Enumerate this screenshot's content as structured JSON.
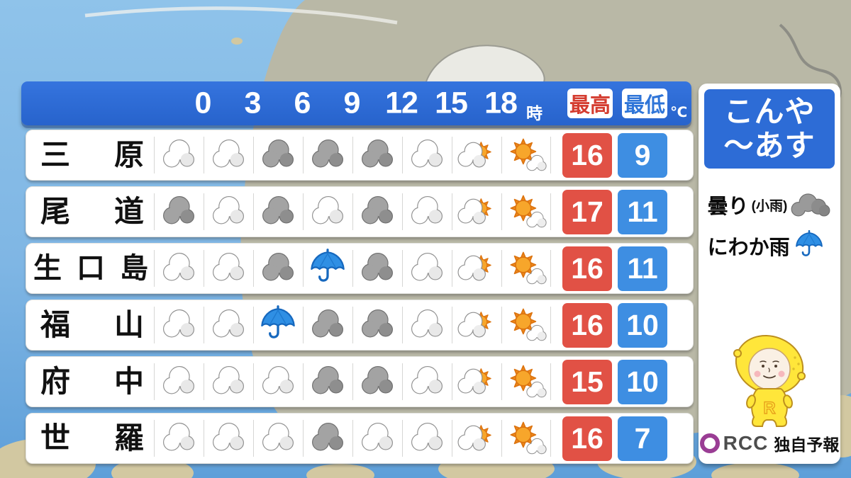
{
  "header": {
    "times": [
      "0",
      "3",
      "6",
      "9",
      "12",
      "15",
      "18"
    ],
    "hour_suffix": "時",
    "high_label": "最高",
    "low_label": "最低",
    "unit": "℃"
  },
  "table": {
    "rows": [
      {
        "city": "三原",
        "icons": [
          "cloud",
          "cloud",
          "dark-cloud",
          "dark-cloud",
          "dark-cloud",
          "cloud",
          "cloud-sun",
          "sun-cloud"
        ],
        "high": "16",
        "low": "9"
      },
      {
        "city": "尾道",
        "icons": [
          "dark-cloud",
          "cloud",
          "dark-cloud",
          "cloud",
          "dark-cloud",
          "cloud",
          "cloud-sun",
          "sun-cloud"
        ],
        "high": "17",
        "low": "11"
      },
      {
        "city": "生口島",
        "icons": [
          "cloud",
          "cloud",
          "dark-cloud",
          "umbrella",
          "dark-cloud",
          "cloud",
          "cloud-sun",
          "sun-cloud"
        ],
        "high": "16",
        "low": "11"
      },
      {
        "city": "福山",
        "icons": [
          "cloud",
          "cloud",
          "umbrella",
          "dark-cloud",
          "dark-cloud",
          "cloud",
          "cloud-sun",
          "sun-cloud"
        ],
        "high": "16",
        "low": "10"
      },
      {
        "city": "府中",
        "icons": [
          "cloud",
          "cloud",
          "cloud",
          "dark-cloud",
          "dark-cloud",
          "cloud",
          "cloud-sun",
          "sun-cloud"
        ],
        "high": "15",
        "low": "10"
      },
      {
        "city": "世羅",
        "icons": [
          "cloud",
          "cloud",
          "cloud",
          "dark-cloud",
          "cloud",
          "cloud",
          "cloud-sun",
          "sun-cloud"
        ],
        "high": "16",
        "low": "7"
      }
    ]
  },
  "panel": {
    "title_line1": "こんや",
    "title_line2": "～あす",
    "legend": [
      {
        "label": "曇り",
        "label_sub": "(小雨)",
        "icon": "dark-cloud"
      },
      {
        "label": "にわか雨",
        "label_sub": "",
        "icon": "umbrella"
      }
    ],
    "mascot_letter": "R",
    "footer": {
      "brand": "RCC",
      "caption": "独自予報"
    }
  },
  "colors": {
    "header_blue": "#2D6CD6",
    "temp_high_bg": "#E15145",
    "temp_low_bg": "#3E8EE2",
    "high_label_text": "#D43C2F",
    "low_label_text": "#2F75D8",
    "sea_light": "#8FC3EA",
    "sea_deep": "#5E9FD9",
    "land": "#B9B8A6"
  }
}
